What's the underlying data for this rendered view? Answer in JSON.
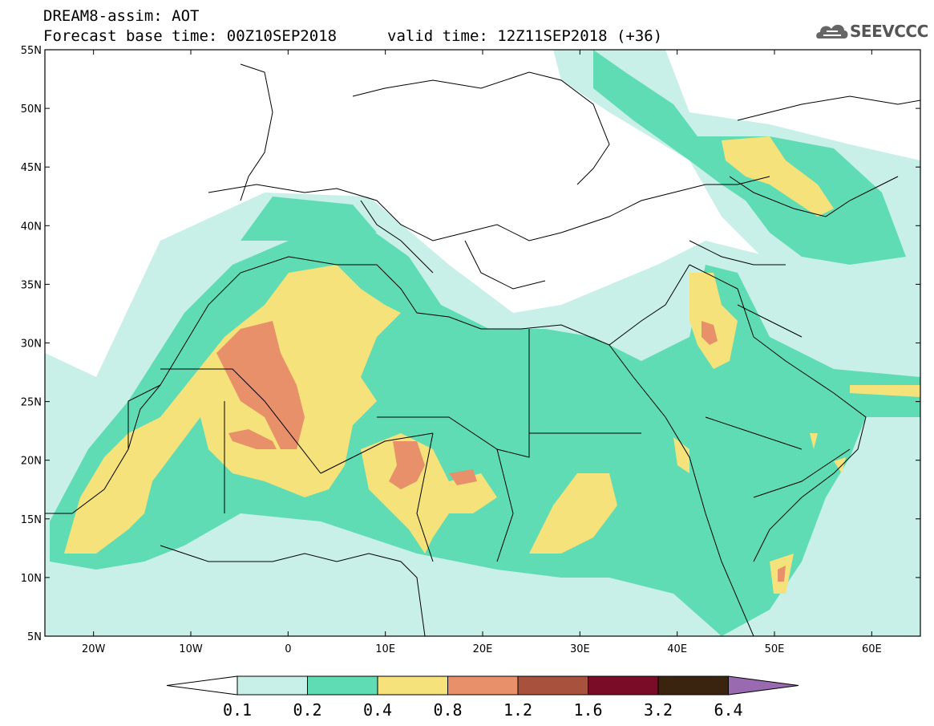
{
  "header": {
    "title": "DREAM8-assim: AOT",
    "base_time": "Forecast base time: 00Z10SEP2018",
    "valid_time": "valid time: 12Z11SEP2018 (+36)",
    "logo_text": "SEEVCCC"
  },
  "map": {
    "lon_range": [
      -25,
      65
    ],
    "lat_range": [
      5,
      55
    ],
    "lat_labels": [
      "55N",
      "50N",
      "45N",
      "40N",
      "35N",
      "30N",
      "25N",
      "20N",
      "15N",
      "10N",
      "5N"
    ],
    "lon_labels": [
      "20W",
      "10W",
      "0",
      "10E",
      "20E",
      "30E",
      "40E",
      "50E",
      "60E"
    ]
  },
  "colorbar": {
    "labels": [
      "0.1",
      "0.2",
      "0.4",
      "0.8",
      "1.2",
      "1.6",
      "3.2",
      "6.4"
    ],
    "colors": [
      "#ffffff",
      "#c8f0e8",
      "#5fdcb4",
      "#f5e27a",
      "#e8906a",
      "#a8523e",
      "#7a0c28",
      "#3a2410",
      "#9a6ab0"
    ]
  },
  "icons": {
    "logo": "cloud-logo-icon"
  }
}
